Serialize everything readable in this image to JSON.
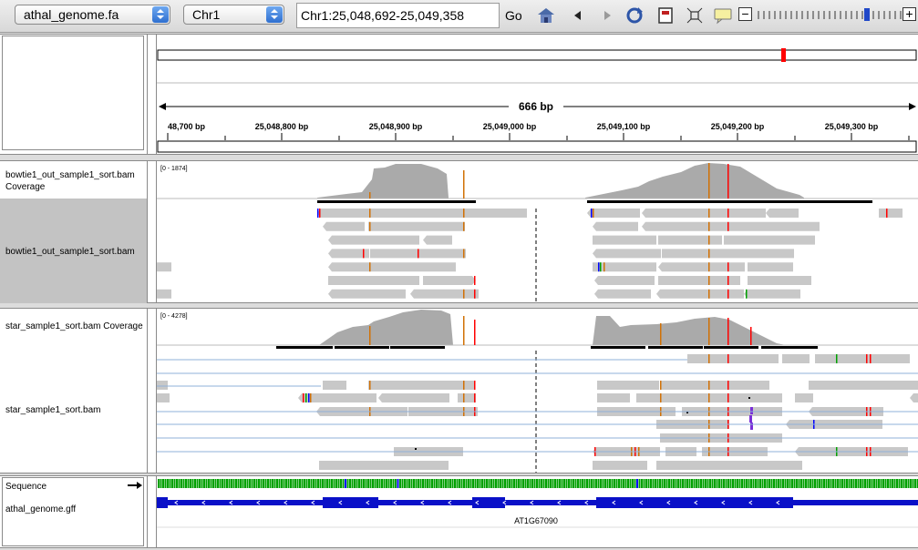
{
  "toolbar": {
    "genome": "athal_genome.fa",
    "chromosome": "Chr1",
    "locus": "Chr1:25,048,692-25,049,358",
    "go_label": "Go"
  },
  "ruler": {
    "span_label": "666 bp",
    "ticks": [
      "48,700 bp",
      "25,048,800 bp",
      "25,048,900 bp",
      "25,049,000 bp",
      "25,049,100 bp",
      "25,049,200 bp",
      "25,049,300 bp"
    ]
  },
  "tracks": {
    "bowtie_coverage": {
      "name": "bowtie1_out_sample1_sort.bam Coverage",
      "range": "[0 - 1874]"
    },
    "bowtie_alignments": {
      "name": "bowtie1_out_sample1_sort.bam"
    },
    "star_coverage": {
      "name": "star_sample1_sort.bam Coverage",
      "range": "[0 - 4278]"
    },
    "star_alignments": {
      "name": "star_sample1_sort.bam"
    },
    "sequence": {
      "name": "Sequence"
    },
    "gff": {
      "name": "athal_genome.gff",
      "feature": "AT1G67090"
    }
  },
  "colors": {
    "read": "#c8c8c8",
    "coverage": "#aaaaaa",
    "gene": "#0a10c8",
    "mismatch_a": "#00a000",
    "mismatch_c": "#0000ff",
    "mismatch_g": "#d17105",
    "mismatch_t": "#ff0000",
    "region_marker": "#ff0000"
  }
}
